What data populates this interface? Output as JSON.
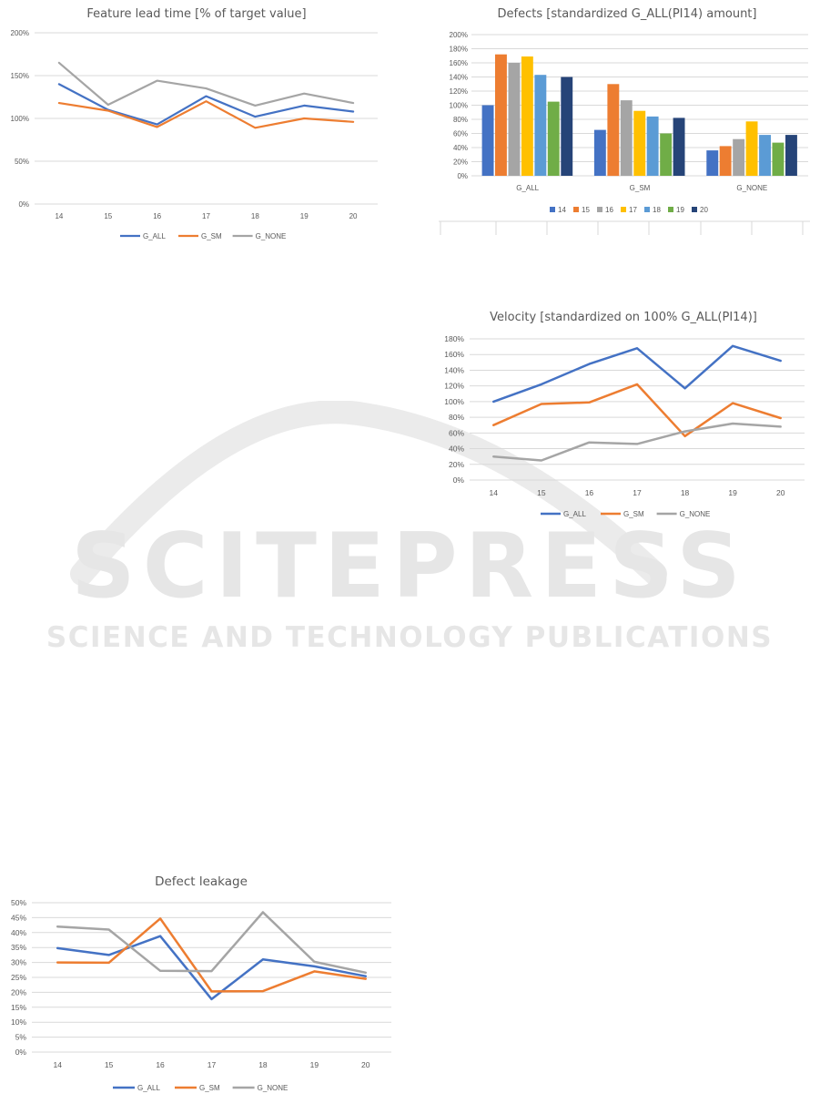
{
  "colors": {
    "blue": "#4472C4",
    "orange": "#ED7D31",
    "gray": "#A5A5A5",
    "gold": "#FFC000",
    "lightblue": "#5B9BD5",
    "green": "#70AD47",
    "navy": "#264478",
    "grid": "#D9D9D9",
    "text": "#595959",
    "watermark": "#E6E6E6"
  },
  "watermark": {
    "line1": "SCITEPRESS",
    "line2": "SCIENCE AND TECHNOLOGY PUBLICATIONS"
  },
  "chart_data": [
    {
      "id": "lead",
      "type": "line",
      "title": "Feature lead time [% of target value]",
      "x": [
        "14",
        "15",
        "16",
        "17",
        "18",
        "19",
        "20"
      ],
      "yticks": [
        "0%",
        "50%",
        "100%",
        "150%",
        "200%"
      ],
      "ylim": [
        0,
        200
      ],
      "grid": true,
      "legend": "bottom",
      "series": [
        {
          "name": "G_ALL",
          "color": "#4472C4",
          "values": [
            140,
            110,
            93,
            126,
            102,
            115,
            108
          ]
        },
        {
          "name": "G_SM",
          "color": "#ED7D31",
          "values": [
            118,
            109,
            90,
            120,
            89,
            100,
            96
          ]
        },
        {
          "name": "G_NONE",
          "color": "#A5A5A5",
          "values": [
            165,
            116,
            144,
            135,
            115,
            129,
            118
          ]
        }
      ]
    },
    {
      "id": "defects",
      "type": "bar",
      "title": "Defects [standardized G_ALL(PI14) amount]",
      "categories": [
        "G_ALL",
        "G_SM",
        "G_NONE"
      ],
      "yticks": [
        "0%",
        "20%",
        "40%",
        "60%",
        "80%",
        "100%",
        "120%",
        "140%",
        "160%",
        "180%",
        "200%"
      ],
      "ylim": [
        0,
        200
      ],
      "grid": true,
      "legend": "bottom",
      "series": [
        {
          "name": "14",
          "color": "#4472C4",
          "values": [
            100,
            65,
            36
          ]
        },
        {
          "name": "15",
          "color": "#ED7D31",
          "values": [
            172,
            130,
            42
          ]
        },
        {
          "name": "16",
          "color": "#A5A5A5",
          "values": [
            160,
            107,
            52
          ]
        },
        {
          "name": "17",
          "color": "#FFC000",
          "values": [
            169,
            92,
            77
          ]
        },
        {
          "name": "18",
          "color": "#5B9BD5",
          "values": [
            143,
            84,
            58
          ]
        },
        {
          "name": "19",
          "color": "#70AD47",
          "values": [
            105,
            60,
            47
          ]
        },
        {
          "name": "20",
          "color": "#264478",
          "values": [
            140,
            82,
            58
          ]
        }
      ]
    },
    {
      "id": "velocity",
      "type": "line",
      "title": "Velocity [standardized on 100% G_ALL(PI14)]",
      "x": [
        "14",
        "15",
        "16",
        "17",
        "18",
        "19",
        "20"
      ],
      "yticks": [
        "0%",
        "20%",
        "40%",
        "60%",
        "80%",
        "100%",
        "120%",
        "140%",
        "160%",
        "180%"
      ],
      "ylim": [
        0,
        180
      ],
      "grid": true,
      "legend": "bottom",
      "series": [
        {
          "name": "G_ALL",
          "color": "#4472C4",
          "values": [
            100,
            122,
            148,
            168,
            117,
            171,
            152
          ]
        },
        {
          "name": "G_SM",
          "color": "#ED7D31",
          "values": [
            70,
            97,
            99,
            122,
            56,
            98,
            79
          ]
        },
        {
          "name": "G_NONE",
          "color": "#A5A5A5",
          "values": [
            30,
            25,
            48,
            46,
            62,
            72,
            68
          ]
        }
      ]
    },
    {
      "id": "leakage",
      "type": "line",
      "title": "Defect leakage",
      "x": [
        "14",
        "15",
        "16",
        "17",
        "18",
        "19",
        "20"
      ],
      "yticks": [
        "0%",
        "5%",
        "10%",
        "15%",
        "20%",
        "25%",
        "30%",
        "35%",
        "40%",
        "45%",
        "50%"
      ],
      "ylim": [
        0,
        50
      ],
      "grid": true,
      "legend": "bottom",
      "series": [
        {
          "name": "G_ALL",
          "color": "#4472C4",
          "values": [
            34.8,
            32.5,
            38.8,
            17.7,
            31.0,
            28.7,
            25.4
          ]
        },
        {
          "name": "G_SM",
          "color": "#ED7D31",
          "values": [
            30.0,
            29.9,
            44.7,
            20.3,
            20.4,
            27.0,
            24.5
          ]
        },
        {
          "name": "G_NONE",
          "color": "#A5A5A5",
          "values": [
            42.0,
            41.0,
            27.2,
            27.1,
            46.8,
            30.2,
            26.6
          ]
        }
      ]
    }
  ]
}
